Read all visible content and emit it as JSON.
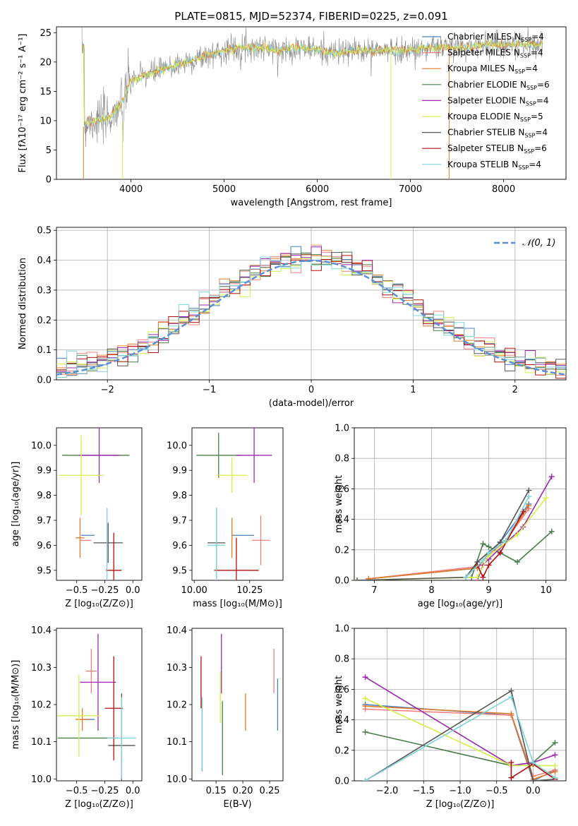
{
  "colors": {
    "Chabrier MILES": "#4a7fc1",
    "Salpeter MILES": "#f08080",
    "Kroupa MILES": "#e07b2a",
    "Chabrier ELODIE": "#4a7d4a",
    "Salpeter ELODIE": "#9c27b0",
    "Kroupa ELODIE": "#d4ee4a",
    "Chabrier STELIB": "#555555",
    "Salpeter STELIB": "#b01010",
    "Kroupa STELIB": "#7ed6d6",
    "normal": "#5a8fd6",
    "grid": "#b0b0b0"
  },
  "chart_data": [
    {
      "id": "spectrum",
      "type": "line",
      "title": "PLATE=0815, MJD=52374, FIBERID=0225, z=0.091",
      "xlabel": "wavelength [Angstrom, rest frame]",
      "ylabel": "Flux [fλ10⁻¹⁷ erg cm⁻² s⁻¹ A⁻¹]",
      "xlim": [
        3200,
        8670
      ],
      "ylim": [
        0,
        26
      ],
      "xticks": [
        4000,
        5000,
        6000,
        7000,
        8000
      ],
      "yticks": [
        0,
        5,
        10,
        15,
        20,
        25
      ],
      "continuum": {
        "x": [
          3500,
          3600,
          3700,
          3800,
          3900,
          4000,
          4200,
          4400,
          4600,
          4800,
          5000,
          5200,
          5400,
          5600,
          5800,
          6000,
          6200,
          6400,
          6600,
          6800,
          7000,
          7200,
          7400,
          7600,
          7800,
          8000,
          8200,
          8400
        ],
        "y": [
          9.5,
          10,
          10,
          11,
          13,
          17,
          18,
          19,
          20,
          21,
          22,
          22.5,
          22.5,
          22,
          22.5,
          22,
          21.5,
          22,
          22,
          22,
          22,
          22.5,
          22.5,
          22.5,
          23,
          23,
          23,
          23
        ]
      },
      "legend": [
        {
          "name": "Chabrier MILES",
          "nssp": "4"
        },
        {
          "name": "Salpeter MILES",
          "nssp": "4"
        },
        {
          "name": "Kroupa MILES",
          "nssp": "4"
        },
        {
          "name": "Chabrier ELODIE",
          "nssp": "6"
        },
        {
          "name": "Salpeter ELODIE",
          "nssp": "4"
        },
        {
          "name": "Kroupa ELODIE",
          "nssp": "5"
        },
        {
          "name": "Chabrier STELIB",
          "nssp": "4"
        },
        {
          "name": "Salpeter STELIB",
          "nssp": "6"
        },
        {
          "name": "Kroupa STELIB",
          "nssp": "4"
        }
      ],
      "legend_label_template": "N",
      "legend_sub": "SSP",
      "legend_placement": "right",
      "grid": false
    },
    {
      "id": "residuals",
      "type": "histogram",
      "xlabel": "(data-model)/error",
      "ylabel": "Normed distribution",
      "xlim": [
        -2.5,
        2.5
      ],
      "ylim": [
        0,
        0.51
      ],
      "xticks": [
        -2,
        -1,
        0,
        1,
        2
      ],
      "xticklabels": [
        "−2",
        "−1",
        "0",
        "1",
        "2"
      ],
      "yticks": [
        0.0,
        0.1,
        0.2,
        0.3,
        0.4,
        0.5
      ],
      "yticklabels": [
        "0.0",
        "0.1",
        "0.2",
        "0.3",
        "0.4",
        "0.5"
      ],
      "bin_width": 0.1,
      "normal_label": "𝒩(0, 1)",
      "legend_placement": "top-right",
      "grid": true
    },
    {
      "id": "age-vs-Z",
      "type": "errorbar",
      "xlabel": "Z [log₁₀(Z/Z⊙)]",
      "ylabel": "age  [log₁₀(age/yr)]",
      "xlim": [
        -0.68,
        0.08
      ],
      "ylim": [
        9.46,
        10.07
      ],
      "xticks": [
        -0.5,
        -0.25,
        0.0
      ],
      "xticklabels": [
        "−0.5",
        "−0.25",
        "0.0"
      ],
      "yticks": [
        9.5,
        9.6,
        9.7,
        9.8,
        9.9,
        10.0
      ],
      "yticklabels": [
        "9.5",
        "9.6",
        "9.7",
        "9.8",
        "9.9",
        "10.0"
      ],
      "points": [
        {
          "model": "Chabrier MILES",
          "x": -0.4,
          "y": 9.64,
          "xerr": 0.06,
          "yerr": 0.0
        },
        {
          "model": "Salpeter MILES",
          "x": -0.42,
          "y": 9.62,
          "xerr": 0.05,
          "yerr": 0.0
        },
        {
          "model": "Kroupa MILES",
          "x": -0.47,
          "y": 9.63,
          "xerr": 0.04,
          "yerr": 0.08
        },
        {
          "model": "Chabrier ELODIE",
          "x": -0.33,
          "y": 9.96,
          "xerr": 0.3,
          "yerr": 0.0
        },
        {
          "model": "Salpeter ELODIE",
          "x": -0.3,
          "y": 9.96,
          "xerr": 0.18,
          "yerr": 0.11
        },
        {
          "model": "Kroupa ELODIE",
          "x": -0.46,
          "y": 9.88,
          "xerr": 0.2,
          "yerr": 0.16
        },
        {
          "model": "Chabrier STELIB",
          "x": -0.22,
          "y": 9.61,
          "xerr": 0.13,
          "yerr": 0.08
        },
        {
          "model": "Salpeter STELIB",
          "x": -0.17,
          "y": 9.5,
          "xerr": 0.07,
          "yerr": 0.15
        },
        {
          "model": "Kroupa STELIB",
          "x": -0.23,
          "y": 9.6,
          "xerr": 0.0,
          "yerr": 0.15
        }
      ]
    },
    {
      "id": "age-vs-mass",
      "type": "errorbar",
      "xlabel": "mass [log₁₀(M/M⊙)]",
      "xlim": [
        9.99,
        10.4
      ],
      "ylim": [
        9.46,
        10.07
      ],
      "xticks": [
        10.0,
        10.25
      ],
      "xticklabels": [
        "10.00",
        "10.25"
      ],
      "yticks": [
        9.5,
        9.6,
        9.7,
        9.8,
        9.9,
        10.0
      ],
      "yticklabels": [
        "9.5",
        "9.6",
        "9.7",
        "9.8",
        "9.9",
        "10.0"
      ],
      "points": [
        {
          "model": "Chabrier MILES",
          "x": 10.22,
          "y": 9.64,
          "xerr": 0.05,
          "yerr": 0.0
        },
        {
          "model": "Salpeter MILES",
          "x": 10.3,
          "y": 9.62,
          "xerr": 0.04,
          "yerr": 0.1
        },
        {
          "model": "Kroupa MILES",
          "x": 10.17,
          "y": 9.63,
          "xerr": 0.0,
          "yerr": 0.08
        },
        {
          "model": "Chabrier ELODIE",
          "x": 10.11,
          "y": 9.96,
          "xerr": 0.1,
          "yerr": 0.09
        },
        {
          "model": "Salpeter ELODIE",
          "x": 10.27,
          "y": 9.96,
          "xerr": 0.08,
          "yerr": 0.11
        },
        {
          "model": "Kroupa ELODIE",
          "x": 10.17,
          "y": 9.88,
          "xerr": 0.07,
          "yerr": 0.07
        },
        {
          "model": "Chabrier STELIB",
          "x": 10.1,
          "y": 9.61,
          "xerr": 0.04,
          "yerr": 0.14
        },
        {
          "model": "Salpeter STELIB",
          "x": 10.19,
          "y": 9.5,
          "xerr": 0.1,
          "yerr": 0.13
        },
        {
          "model": "Kroupa STELIB",
          "x": 10.1,
          "y": 9.6,
          "xerr": 0.04,
          "yerr": 0.15
        }
      ]
    },
    {
      "id": "weight-vs-age",
      "type": "line",
      "xlabel": "age  [log₁₀(age/yr)]",
      "ylabel": "mass weight",
      "xlim": [
        6.65,
        10.35
      ],
      "ylim": [
        0,
        1.0
      ],
      "xticks": [
        7,
        8,
        9,
        10
      ],
      "yticks": [
        0.0,
        0.2,
        0.4,
        0.6,
        0.8,
        1.0
      ],
      "yticklabels": [
        "0.0",
        "0.2",
        "0.4",
        "0.6",
        "0.8",
        "1.0"
      ],
      "grid": true,
      "series": [
        {
          "model": "Chabrier MILES",
          "x": [
            6.9,
            8.8,
            9.0,
            9.2,
            9.7
          ],
          "y": [
            0.01,
            0.08,
            0.18,
            0.25,
            0.5
          ]
        },
        {
          "model": "Salpeter MILES",
          "x": [
            6.9,
            8.8,
            9.0,
            9.3,
            9.7
          ],
          "y": [
            0.01,
            0.09,
            0.17,
            0.26,
            0.47
          ]
        },
        {
          "model": "Kroupa MILES",
          "x": [
            6.9,
            8.8,
            9.0,
            9.3,
            9.7
          ],
          "y": [
            0.01,
            0.08,
            0.18,
            0.26,
            0.49
          ]
        },
        {
          "model": "Chabrier ELODIE",
          "x": [
            8.7,
            8.9,
            9.0,
            9.5,
            10.1
          ],
          "y": [
            0.02,
            0.24,
            0.22,
            0.12,
            0.32
          ]
        },
        {
          "model": "Salpeter ELODIE",
          "x": [
            8.8,
            8.9,
            9.0,
            9.6,
            10.1
          ],
          "y": [
            0.0,
            0.1,
            0.14,
            0.35,
            0.68
          ]
        },
        {
          "model": "Kroupa ELODIE",
          "x": [
            6.7,
            8.8,
            9.0,
            9.5,
            10.0
          ],
          "y": [
            0.0,
            0.02,
            0.16,
            0.3,
            0.54
          ]
        },
        {
          "model": "Chabrier STELIB",
          "x": [
            6.7,
            8.6,
            8.8,
            9.2,
            9.7
          ],
          "y": [
            0.0,
            0.02,
            0.12,
            0.25,
            0.59
          ]
        },
        {
          "model": "Salpeter STELIB",
          "x": [
            8.8,
            8.9,
            9.0,
            9.2,
            9.6
          ],
          "y": [
            0.1,
            0.02,
            0.1,
            0.18,
            0.45
          ]
        },
        {
          "model": "Kroupa STELIB",
          "x": [
            8.6,
            8.9,
            9.0,
            9.3,
            9.7
          ],
          "y": [
            0.02,
            0.13,
            0.18,
            0.26,
            0.55
          ]
        }
      ]
    },
    {
      "id": "mass-vs-Z",
      "type": "errorbar",
      "xlabel": "Z [log₁₀(Z/Z⊙)]",
      "ylabel": "mass [log₁₀(M/M⊙)]",
      "xlim": [
        -0.68,
        0.08
      ],
      "ylim": [
        9.995,
        10.405
      ],
      "xticks": [
        -0.5,
        -0.25,
        0.0
      ],
      "xticklabels": [
        "−0.5",
        "−0.25",
        "0.0"
      ],
      "yticks": [
        10.0,
        10.1,
        10.2,
        10.3,
        10.4
      ],
      "yticklabels": [
        "10.0",
        "10.1",
        "10.2",
        "10.3",
        "10.4"
      ],
      "points": [
        {
          "model": "Chabrier MILES",
          "x": -0.4,
          "y": 10.16,
          "xerr": 0.06,
          "yerr": 0.0
        },
        {
          "model": "Salpeter MILES",
          "x": -0.37,
          "y": 10.29,
          "xerr": 0.05,
          "yerr": 0.06
        },
        {
          "model": "Kroupa MILES",
          "x": -0.45,
          "y": 10.16,
          "xerr": 0.06,
          "yerr": 0.03
        },
        {
          "model": "Chabrier ELODIE",
          "x": -0.4,
          "y": 10.11,
          "xerr": 0.27,
          "yerr": 0.0
        },
        {
          "model": "Salpeter ELODIE",
          "x": -0.31,
          "y": 10.26,
          "xerr": 0.16,
          "yerr": 0.13
        },
        {
          "model": "Kroupa ELODIE",
          "x": -0.48,
          "y": 10.17,
          "xerr": 0.19,
          "yerr": 0.11
        },
        {
          "model": "Chabrier STELIB",
          "x": -0.1,
          "y": 10.09,
          "xerr": 0.12,
          "yerr": 0.14
        },
        {
          "model": "Salpeter STELIB",
          "x": -0.17,
          "y": 10.19,
          "xerr": 0.08,
          "yerr": 0.14
        },
        {
          "model": "Kroupa STELIB",
          "x": -0.1,
          "y": 10.11,
          "xerr": 0.13,
          "yerr": 0.11
        }
      ]
    },
    {
      "id": "mass-vs-EBV",
      "type": "errorbar",
      "xlabel": "E(B-V)",
      "xlim": [
        0.105,
        0.275
      ],
      "ylim": [
        9.995,
        10.405
      ],
      "xticks": [
        0.15,
        0.2,
        0.25
      ],
      "xticklabels": [
        "0.15",
        "0.20",
        "0.25"
      ],
      "yticks": [
        10.0,
        10.1,
        10.2,
        10.3,
        10.4
      ],
      "yticklabels": [
        "10.0",
        "10.1",
        "10.2",
        "10.3",
        "10.4"
      ],
      "points": [
        {
          "model": "Chabrier MILES",
          "x": 0.265,
          "y": 10.2,
          "xerr": 0.0,
          "yerr": 0.07
        },
        {
          "model": "Salpeter MILES",
          "x": 0.258,
          "y": 10.29,
          "xerr": 0.0,
          "yerr": 0.06
        },
        {
          "model": "Kroupa MILES",
          "x": 0.205,
          "y": 10.18,
          "xerr": 0.0,
          "yerr": 0.05
        },
        {
          "model": "Chabrier ELODIE",
          "x": 0.162,
          "y": 10.11,
          "xerr": 0.0,
          "yerr": 0.1
        },
        {
          "model": "Salpeter ELODIE",
          "x": 0.16,
          "y": 10.31,
          "xerr": 0.0,
          "yerr": 0.08
        },
        {
          "model": "Kroupa ELODIE",
          "x": 0.158,
          "y": 10.22,
          "xerr": 0.0,
          "yerr": 0.07
        },
        {
          "model": "Chabrier STELIB",
          "x": 0.124,
          "y": 10.12,
          "xerr": 0.0,
          "yerr": 0.1
        },
        {
          "model": "Salpeter STELIB",
          "x": 0.122,
          "y": 10.26,
          "xerr": 0.0,
          "yerr": 0.07
        },
        {
          "model": "Kroupa STELIB",
          "x": 0.124,
          "y": 10.12,
          "xerr": 0.0,
          "yerr": 0.1
        }
      ]
    },
    {
      "id": "weight-vs-Z",
      "type": "line",
      "xlabel": "Z [log₁₀(Z/Z⊙)]",
      "ylabel": "mass weight",
      "xlim": [
        -2.45,
        0.45
      ],
      "ylim": [
        0,
        1.0
      ],
      "xticks": [
        -2.0,
        -1.5,
        -1.0,
        -0.5,
        0.0
      ],
      "xticklabels": [
        "−2.0",
        "−1.5",
        "−1.0",
        "−0.5",
        "0.0"
      ],
      "yticks": [
        0.0,
        0.2,
        0.4,
        0.6,
        0.8,
        1.0
      ],
      "yticklabels": [
        "0.0",
        "0.2",
        "0.4",
        "0.6",
        "0.8",
        "1.0"
      ],
      "grid": true,
      "series": [
        {
          "model": "Chabrier MILES",
          "x": [
            -2.3,
            -0.3,
            0.0,
            0.3
          ],
          "y": [
            0.5,
            0.43,
            0.0,
            0.07
          ]
        },
        {
          "model": "Salpeter MILES",
          "x": [
            -2.3,
            -0.3,
            0.0,
            0.3
          ],
          "y": [
            0.47,
            0.43,
            0.03,
            0.07
          ]
        },
        {
          "model": "Kroupa MILES",
          "x": [
            -2.3,
            -0.3,
            0.0,
            0.3
          ],
          "y": [
            0.49,
            0.44,
            0.01,
            0.06
          ]
        },
        {
          "model": "Chabrier ELODIE",
          "x": [
            -2.3,
            -0.3,
            0.0,
            0.3
          ],
          "y": [
            0.32,
            0.1,
            0.12,
            0.25
          ]
        },
        {
          "model": "Salpeter ELODIE",
          "x": [
            -2.3,
            -0.3,
            0.0,
            0.3
          ],
          "y": [
            0.68,
            0.1,
            0.12,
            0.17
          ]
        },
        {
          "model": "Kroupa ELODIE",
          "x": [
            -2.3,
            -0.3,
            0.0,
            0.3
          ],
          "y": [
            0.54,
            0.1,
            0.1,
            0.1
          ]
        },
        {
          "model": "Chabrier STELIB",
          "x": [
            -2.3,
            -0.3,
            0.0,
            0.3
          ],
          "y": [
            0.0,
            0.59,
            0.0,
            0.01
          ]
        },
        {
          "model": "Salpeter STELIB",
          "x": [
            -0.3,
            -0.3,
            0.0,
            0.3
          ],
          "y": [
            0.12,
            0.02,
            0.11,
            0.01
          ]
        },
        {
          "model": "Kroupa STELIB",
          "x": [
            -2.3,
            -0.3,
            0.0,
            0.3
          ],
          "y": [
            0.0,
            0.55,
            0.12,
            0.02
          ]
        }
      ]
    }
  ]
}
